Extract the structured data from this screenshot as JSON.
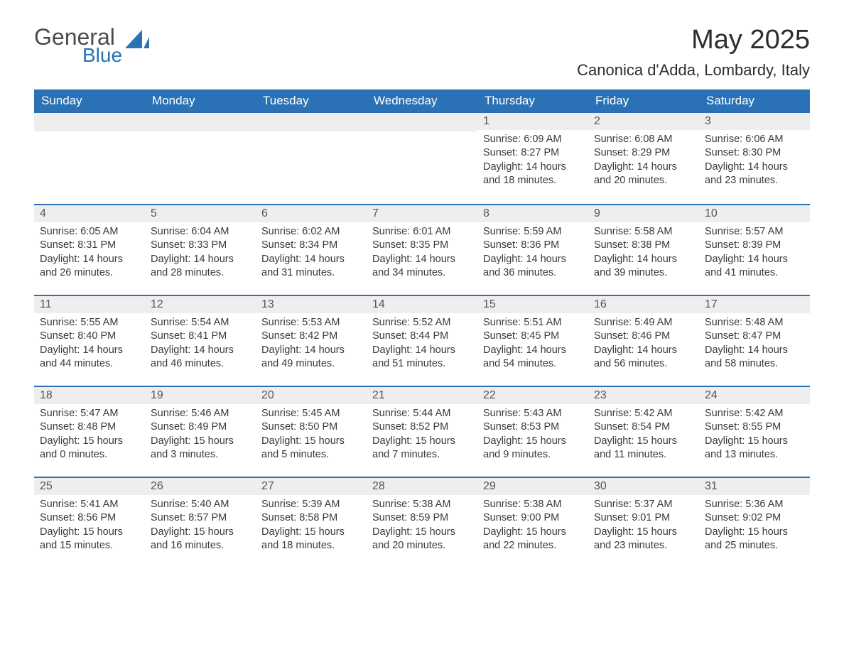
{
  "brand": {
    "text1": "General",
    "text2": "Blue",
    "text1_color": "#4a4a4a",
    "text2_color": "#2a72b5",
    "sail_color": "#2a72b5"
  },
  "title": "May 2025",
  "location": "Canonica d'Adda, Lombardy, Italy",
  "colors": {
    "header_bg": "#2a72b5",
    "header_text": "#ffffff",
    "daynum_bg": "#eeeeee",
    "daynum_border": "#2a72b5",
    "body_text": "#3a3a3a",
    "page_bg": "#ffffff"
  },
  "fonts": {
    "title_size_pt": 29,
    "location_size_pt": 17,
    "weekday_size_pt": 13,
    "body_size_pt": 11
  },
  "weekdays": [
    "Sunday",
    "Monday",
    "Tuesday",
    "Wednesday",
    "Thursday",
    "Friday",
    "Saturday"
  ],
  "grid": [
    [
      {
        "empty": true
      },
      {
        "empty": true
      },
      {
        "empty": true
      },
      {
        "empty": true
      },
      {
        "day": 1,
        "sunrise": "6:09 AM",
        "sunset": "8:27 PM",
        "daylight": "14 hours and 18 minutes."
      },
      {
        "day": 2,
        "sunrise": "6:08 AM",
        "sunset": "8:29 PM",
        "daylight": "14 hours and 20 minutes."
      },
      {
        "day": 3,
        "sunrise": "6:06 AM",
        "sunset": "8:30 PM",
        "daylight": "14 hours and 23 minutes."
      }
    ],
    [
      {
        "day": 4,
        "sunrise": "6:05 AM",
        "sunset": "8:31 PM",
        "daylight": "14 hours and 26 minutes."
      },
      {
        "day": 5,
        "sunrise": "6:04 AM",
        "sunset": "8:33 PM",
        "daylight": "14 hours and 28 minutes."
      },
      {
        "day": 6,
        "sunrise": "6:02 AM",
        "sunset": "8:34 PM",
        "daylight": "14 hours and 31 minutes."
      },
      {
        "day": 7,
        "sunrise": "6:01 AM",
        "sunset": "8:35 PM",
        "daylight": "14 hours and 34 minutes."
      },
      {
        "day": 8,
        "sunrise": "5:59 AM",
        "sunset": "8:36 PM",
        "daylight": "14 hours and 36 minutes."
      },
      {
        "day": 9,
        "sunrise": "5:58 AM",
        "sunset": "8:38 PM",
        "daylight": "14 hours and 39 minutes."
      },
      {
        "day": 10,
        "sunrise": "5:57 AM",
        "sunset": "8:39 PM",
        "daylight": "14 hours and 41 minutes."
      }
    ],
    [
      {
        "day": 11,
        "sunrise": "5:55 AM",
        "sunset": "8:40 PM",
        "daylight": "14 hours and 44 minutes."
      },
      {
        "day": 12,
        "sunrise": "5:54 AM",
        "sunset": "8:41 PM",
        "daylight": "14 hours and 46 minutes."
      },
      {
        "day": 13,
        "sunrise": "5:53 AM",
        "sunset": "8:42 PM",
        "daylight": "14 hours and 49 minutes."
      },
      {
        "day": 14,
        "sunrise": "5:52 AM",
        "sunset": "8:44 PM",
        "daylight": "14 hours and 51 minutes."
      },
      {
        "day": 15,
        "sunrise": "5:51 AM",
        "sunset": "8:45 PM",
        "daylight": "14 hours and 54 minutes."
      },
      {
        "day": 16,
        "sunrise": "5:49 AM",
        "sunset": "8:46 PM",
        "daylight": "14 hours and 56 minutes."
      },
      {
        "day": 17,
        "sunrise": "5:48 AM",
        "sunset": "8:47 PM",
        "daylight": "14 hours and 58 minutes."
      }
    ],
    [
      {
        "day": 18,
        "sunrise": "5:47 AM",
        "sunset": "8:48 PM",
        "daylight": "15 hours and 0 minutes."
      },
      {
        "day": 19,
        "sunrise": "5:46 AM",
        "sunset": "8:49 PM",
        "daylight": "15 hours and 3 minutes."
      },
      {
        "day": 20,
        "sunrise": "5:45 AM",
        "sunset": "8:50 PM",
        "daylight": "15 hours and 5 minutes."
      },
      {
        "day": 21,
        "sunrise": "5:44 AM",
        "sunset": "8:52 PM",
        "daylight": "15 hours and 7 minutes."
      },
      {
        "day": 22,
        "sunrise": "5:43 AM",
        "sunset": "8:53 PM",
        "daylight": "15 hours and 9 minutes."
      },
      {
        "day": 23,
        "sunrise": "5:42 AM",
        "sunset": "8:54 PM",
        "daylight": "15 hours and 11 minutes."
      },
      {
        "day": 24,
        "sunrise": "5:42 AM",
        "sunset": "8:55 PM",
        "daylight": "15 hours and 13 minutes."
      }
    ],
    [
      {
        "day": 25,
        "sunrise": "5:41 AM",
        "sunset": "8:56 PM",
        "daylight": "15 hours and 15 minutes."
      },
      {
        "day": 26,
        "sunrise": "5:40 AM",
        "sunset": "8:57 PM",
        "daylight": "15 hours and 16 minutes."
      },
      {
        "day": 27,
        "sunrise": "5:39 AM",
        "sunset": "8:58 PM",
        "daylight": "15 hours and 18 minutes."
      },
      {
        "day": 28,
        "sunrise": "5:38 AM",
        "sunset": "8:59 PM",
        "daylight": "15 hours and 20 minutes."
      },
      {
        "day": 29,
        "sunrise": "5:38 AM",
        "sunset": "9:00 PM",
        "daylight": "15 hours and 22 minutes."
      },
      {
        "day": 30,
        "sunrise": "5:37 AM",
        "sunset": "9:01 PM",
        "daylight": "15 hours and 23 minutes."
      },
      {
        "day": 31,
        "sunrise": "5:36 AM",
        "sunset": "9:02 PM",
        "daylight": "15 hours and 25 minutes."
      }
    ]
  ],
  "labels": {
    "sunrise": "Sunrise:",
    "sunset": "Sunset:",
    "daylight": "Daylight:"
  }
}
